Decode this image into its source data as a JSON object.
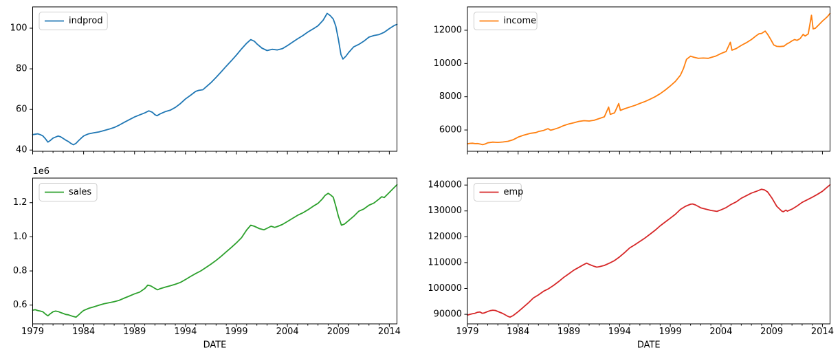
{
  "figure": {
    "background": "#ffffff",
    "kind": "2x2 time-series line subplots"
  },
  "x_axis": {
    "label": "DATE",
    "lim": [
      1979.0,
      2014.75
    ],
    "major_ticks": [
      1979,
      1984,
      1989,
      1994,
      1999,
      2004,
      2009,
      2014
    ],
    "major_tick_labels": [
      "1979",
      "1984",
      "1989",
      "1994",
      "1999",
      "2004",
      "2009",
      "2014"
    ],
    "minor_tick_step_years": 1
  },
  "chart_data": [
    {
      "id": "indprod",
      "type": "line",
      "legend": "indprod",
      "color": "#1f77b4",
      "legend_position": "upper-left",
      "grid": false,
      "ylim": [
        39.4,
        110.5
      ],
      "yticks": [
        40,
        60,
        80,
        100
      ],
      "ytick_labels": [
        "40",
        "60",
        "80",
        "100"
      ],
      "offset_text": null,
      "xlabel": null,
      "x": [
        1979.0,
        1979.25,
        1979.5,
        1979.75,
        1980.0,
        1980.25,
        1980.5,
        1980.75,
        1981.0,
        1981.25,
        1981.5,
        1981.75,
        1982.0,
        1982.25,
        1982.5,
        1982.75,
        1983.0,
        1983.25,
        1983.5,
        1983.75,
        1984.0,
        1984.25,
        1984.5,
        1985.0,
        1985.5,
        1986.0,
        1986.5,
        1987.0,
        1987.5,
        1988.0,
        1988.5,
        1989.0,
        1989.5,
        1990.0,
        1990.4,
        1990.75,
        1991.0,
        1991.2,
        1991.5,
        1992.0,
        1992.5,
        1993.0,
        1993.5,
        1994.0,
        1994.5,
        1995.0,
        1995.3,
        1995.7,
        1996.0,
        1996.5,
        1997.0,
        1997.5,
        1998.0,
        1998.5,
        1999.0,
        1999.5,
        2000.0,
        2000.4,
        2000.75,
        2001.0,
        2001.5,
        2002.0,
        2002.5,
        2003.0,
        2003.5,
        2004.0,
        2004.5,
        2005.0,
        2005.5,
        2006.0,
        2006.5,
        2007.0,
        2007.5,
        2007.9,
        2008.2,
        2008.5,
        2008.75,
        2009.0,
        2009.25,
        2009.45,
        2009.75,
        2010.0,
        2010.5,
        2011.0,
        2011.5,
        2012.0,
        2012.5,
        2013.0,
        2013.5,
        2014.0,
        2014.5,
        2014.75
      ],
      "y": [
        47.6,
        47.8,
        48.0,
        47.6,
        47.0,
        45.6,
        43.9,
        44.8,
        45.9,
        46.4,
        46.9,
        46.5,
        45.7,
        44.9,
        44.2,
        43.3,
        42.6,
        43.3,
        44.6,
        45.8,
        46.9,
        47.5,
        48.0,
        48.5,
        48.9,
        49.6,
        50.3,
        51.1,
        52.3,
        53.7,
        55.0,
        56.3,
        57.3,
        58.3,
        59.3,
        58.6,
        57.4,
        56.9,
        57.8,
        58.9,
        59.6,
        61.0,
        62.9,
        65.2,
        67.0,
        68.9,
        69.4,
        69.7,
        71.0,
        73.2,
        75.8,
        78.5,
        81.3,
        84.0,
        86.8,
        89.8,
        92.6,
        94.4,
        93.6,
        92.3,
        90.2,
        89.0,
        89.6,
        89.3,
        89.9,
        91.4,
        93.1,
        94.8,
        96.3,
        98.1,
        99.6,
        101.2,
        103.9,
        107.3,
        106.2,
        104.5,
        101.0,
        94.5,
        87.0,
        84.8,
        86.3,
        88.0,
        90.8,
        92.0,
        93.6,
        95.6,
        96.4,
        96.9,
        98.0,
        99.8,
        101.4,
        101.9
      ]
    },
    {
      "id": "income",
      "type": "line",
      "legend": "income",
      "color": "#ff7f0e",
      "legend_position": "upper-left",
      "grid": false,
      "ylim": [
        4720,
        13405
      ],
      "yticks": [
        6000,
        8000,
        10000,
        12000
      ],
      "ytick_labels": [
        "6000",
        "8000",
        "10000",
        "12000"
      ],
      "offset_text": null,
      "xlabel": null,
      "x": [
        1979.0,
        1979.25,
        1979.5,
        1979.75,
        1980.0,
        1980.3,
        1980.5,
        1980.75,
        1981.0,
        1981.5,
        1982.0,
        1982.5,
        1983.0,
        1983.5,
        1984.0,
        1984.5,
        1985.0,
        1985.25,
        1985.75,
        1986.0,
        1986.5,
        1986.95,
        1987.2,
        1987.5,
        1988.0,
        1988.5,
        1989.0,
        1989.5,
        1990.0,
        1990.5,
        1991.0,
        1991.5,
        1992.0,
        1992.5,
        1992.92,
        1993.08,
        1993.5,
        1993.92,
        1994.08,
        1994.5,
        1995.0,
        1995.5,
        1996.0,
        1996.5,
        1997.0,
        1997.5,
        1998.0,
        1998.5,
        1999.0,
        1999.5,
        2000.0,
        2000.3,
        2000.6,
        2001.0,
        2001.3,
        2001.75,
        2002.25,
        2002.75,
        2003.0,
        2003.5,
        2004.0,
        2004.5,
        2004.92,
        2005.08,
        2005.5,
        2006.0,
        2006.5,
        2007.0,
        2007.5,
        2007.75,
        2008.0,
        2008.35,
        2008.6,
        2008.9,
        2009.2,
        2009.5,
        2009.8,
        2010.2,
        2010.5,
        2010.75,
        2011.0,
        2011.25,
        2011.5,
        2011.8,
        2012.1,
        2012.3,
        2012.6,
        2012.92,
        2013.08,
        2013.3,
        2013.6,
        2014.0,
        2014.25,
        2014.5,
        2014.75
      ],
      "y": [
        5170,
        5195,
        5205,
        5180,
        5185,
        5150,
        5115,
        5160,
        5230,
        5270,
        5255,
        5280,
        5320,
        5410,
        5570,
        5680,
        5765,
        5805,
        5845,
        5905,
        5975,
        6080,
        5985,
        6035,
        6135,
        6265,
        6365,
        6435,
        6520,
        6560,
        6540,
        6585,
        6690,
        6790,
        7380,
        6940,
        7030,
        7590,
        7180,
        7280,
        7380,
        7480,
        7600,
        7710,
        7850,
        8000,
        8180,
        8400,
        8650,
        8920,
        9300,
        9700,
        10250,
        10440,
        10380,
        10310,
        10330,
        10310,
        10360,
        10450,
        10600,
        10720,
        11280,
        10800,
        10900,
        11090,
        11250,
        11440,
        11680,
        11790,
        11810,
        11950,
        11750,
        11450,
        11120,
        11030,
        11020,
        11040,
        11180,
        11260,
        11360,
        11440,
        11390,
        11500,
        11750,
        11650,
        11780,
        12900,
        12080,
        12120,
        12300,
        12550,
        12680,
        12820,
        13010
      ]
    },
    {
      "id": "sales",
      "type": "line",
      "legend": "sales",
      "color": "#2ca02c",
      "legend_position": "upper-left",
      "grid": false,
      "ylim": [
        490000,
        1344000
      ],
      "yticks": [
        600000,
        800000,
        1000000,
        1200000
      ],
      "ytick_labels": [
        "0.6",
        "0.8",
        "1.0",
        "1.2"
      ],
      "offset_text": "1e6",
      "xlabel": "DATE",
      "x": [
        1979.0,
        1979.25,
        1979.5,
        1979.75,
        1980.0,
        1980.25,
        1980.5,
        1980.75,
        1981.0,
        1981.25,
        1981.5,
        1981.75,
        1982.0,
        1982.25,
        1982.5,
        1982.75,
        1983.0,
        1983.25,
        1983.5,
        1983.75,
        1984.0,
        1984.5,
        1985.0,
        1985.5,
        1986.0,
        1986.5,
        1987.0,
        1987.5,
        1988.0,
        1988.5,
        1989.0,
        1989.5,
        1990.0,
        1990.3,
        1990.6,
        1991.0,
        1991.25,
        1991.5,
        1992.0,
        1992.5,
        1993.0,
        1993.5,
        1994.0,
        1994.5,
        1995.0,
        1995.5,
        1996.0,
        1996.5,
        1997.0,
        1997.5,
        1998.0,
        1998.5,
        1999.0,
        1999.5,
        2000.0,
        2000.4,
        2000.75,
        2001.25,
        2001.7,
        2002.0,
        2002.4,
        2002.75,
        2003.0,
        2003.5,
        2004.0,
        2004.5,
        2005.0,
        2005.5,
        2006.0,
        2006.5,
        2007.0,
        2007.4,
        2007.7,
        2008.0,
        2008.2,
        2008.5,
        2008.75,
        2009.0,
        2009.3,
        2009.6,
        2010.0,
        2010.5,
        2011.0,
        2011.5,
        2012.0,
        2012.5,
        2013.0,
        2013.25,
        2013.5,
        2014.0,
        2014.5,
        2014.75
      ],
      "y": [
        570000,
        573000,
        568000,
        565000,
        561000,
        548000,
        537000,
        550000,
        561000,
        565000,
        562000,
        556000,
        551000,
        545000,
        543000,
        538000,
        533000,
        529000,
        542000,
        556000,
        568000,
        581000,
        590000,
        599000,
        608000,
        614000,
        620000,
        628000,
        641000,
        653000,
        666000,
        676000,
        697000,
        717000,
        712000,
        698000,
        690000,
        696000,
        705000,
        713000,
        722000,
        733000,
        750000,
        768000,
        785000,
        800000,
        820000,
        840000,
        862000,
        886000,
        912000,
        938000,
        965000,
        995000,
        1040000,
        1068000,
        1062000,
        1048000,
        1041000,
        1050000,
        1062000,
        1055000,
        1060000,
        1072000,
        1090000,
        1108000,
        1126000,
        1140000,
        1158000,
        1178000,
        1196000,
        1220000,
        1243000,
        1255000,
        1247000,
        1232000,
        1180000,
        1120000,
        1068000,
        1075000,
        1095000,
        1120000,
        1150000,
        1163000,
        1185000,
        1198000,
        1222000,
        1235000,
        1230000,
        1260000,
        1290000,
        1305000
      ]
    },
    {
      "id": "emp",
      "type": "line",
      "legend": "emp",
      "color": "#d62728",
      "legend_position": "upper-left",
      "grid": false,
      "ylim": [
        86300,
        142700
      ],
      "yticks": [
        90000,
        100000,
        110000,
        120000,
        130000,
        140000
      ],
      "ytick_labels": [
        "90000",
        "100000",
        "110000",
        "120000",
        "130000",
        "140000"
      ],
      "offset_text": null,
      "xlabel": "DATE",
      "x": [
        1979.0,
        1979.25,
        1979.5,
        1979.75,
        1980.0,
        1980.25,
        1980.45,
        1980.65,
        1981.0,
        1981.25,
        1981.5,
        1981.75,
        1982.0,
        1982.5,
        1983.0,
        1983.2,
        1983.5,
        1984.0,
        1984.5,
        1985.0,
        1985.5,
        1986.0,
        1986.5,
        1987.0,
        1987.5,
        1988.0,
        1988.5,
        1989.0,
        1989.5,
        1990.0,
        1990.4,
        1990.75,
        1991.0,
        1991.4,
        1991.75,
        1992.0,
        1992.5,
        1993.0,
        1993.5,
        1994.0,
        1994.5,
        1995.0,
        1995.5,
        1996.0,
        1996.5,
        1997.0,
        1997.5,
        1998.0,
        1998.5,
        1999.0,
        1999.5,
        2000.0,
        2000.5,
        2001.0,
        2001.2,
        2001.5,
        2002.0,
        2002.5,
        2003.0,
        2003.6,
        2004.0,
        2004.5,
        2005.0,
        2005.5,
        2006.0,
        2006.5,
        2007.0,
        2007.5,
        2008.0,
        2008.3,
        2008.6,
        2009.0,
        2009.5,
        2010.0,
        2010.15,
        2010.4,
        2010.55,
        2011.0,
        2011.5,
        2012.0,
        2012.5,
        2013.0,
        2013.5,
        2014.0,
        2014.5,
        2014.75
      ],
      "y": [
        89700,
        90000,
        90200,
        90400,
        90800,
        90900,
        90400,
        90500,
        91100,
        91400,
        91600,
        91500,
        91100,
        90300,
        89200,
        88900,
        89500,
        91000,
        92700,
        94400,
        96300,
        97500,
        98900,
        99900,
        101200,
        102700,
        104300,
        105700,
        107100,
        108200,
        109100,
        109800,
        109300,
        108700,
        108250,
        108400,
        108900,
        109800,
        110800,
        112200,
        113900,
        115700,
        116900,
        118200,
        119500,
        121000,
        122500,
        124200,
        125700,
        127200,
        128700,
        130600,
        131800,
        132600,
        132700,
        132300,
        131200,
        130700,
        130200,
        129820,
        130400,
        131300,
        132500,
        133500,
        134900,
        135900,
        136900,
        137600,
        138400,
        138100,
        137300,
        135100,
        131800,
        129900,
        129700,
        130300,
        129900,
        130700,
        131900,
        133300,
        134300,
        135300,
        136400,
        137600,
        139300,
        140100
      ]
    }
  ],
  "style": {
    "spine_color": "#000000",
    "tick_color": "#000000",
    "legend_border_color": "#cccccc",
    "legend_background": "rgba(255,255,255,0.8)"
  }
}
